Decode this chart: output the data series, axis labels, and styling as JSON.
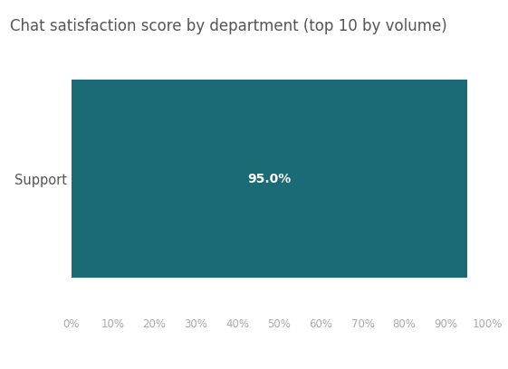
{
  "title": "Chat satisfaction score by department (top 10 by volume)",
  "categories": [
    "Support"
  ],
  "values": [
    95.0
  ],
  "bar_color": "#1a6b75",
  "label_color": "#ffffff",
  "label_fontsize": 10,
  "label_fontweight": "bold",
  "title_fontsize": 12,
  "title_color": "#555555",
  "tick_color": "#aaaaaa",
  "ylabel_color": "#555555",
  "background_color": "#ffffff",
  "xlim": [
    0,
    100
  ],
  "xtick_values": [
    0,
    10,
    20,
    30,
    40,
    50,
    60,
    70,
    80,
    90,
    100
  ],
  "xtick_labels": [
    "0%",
    "10%",
    "20%",
    "30%",
    "40%",
    "50%",
    "60%",
    "70%",
    "80%",
    "90%",
    "100%"
  ],
  "bar_height": 0.72
}
